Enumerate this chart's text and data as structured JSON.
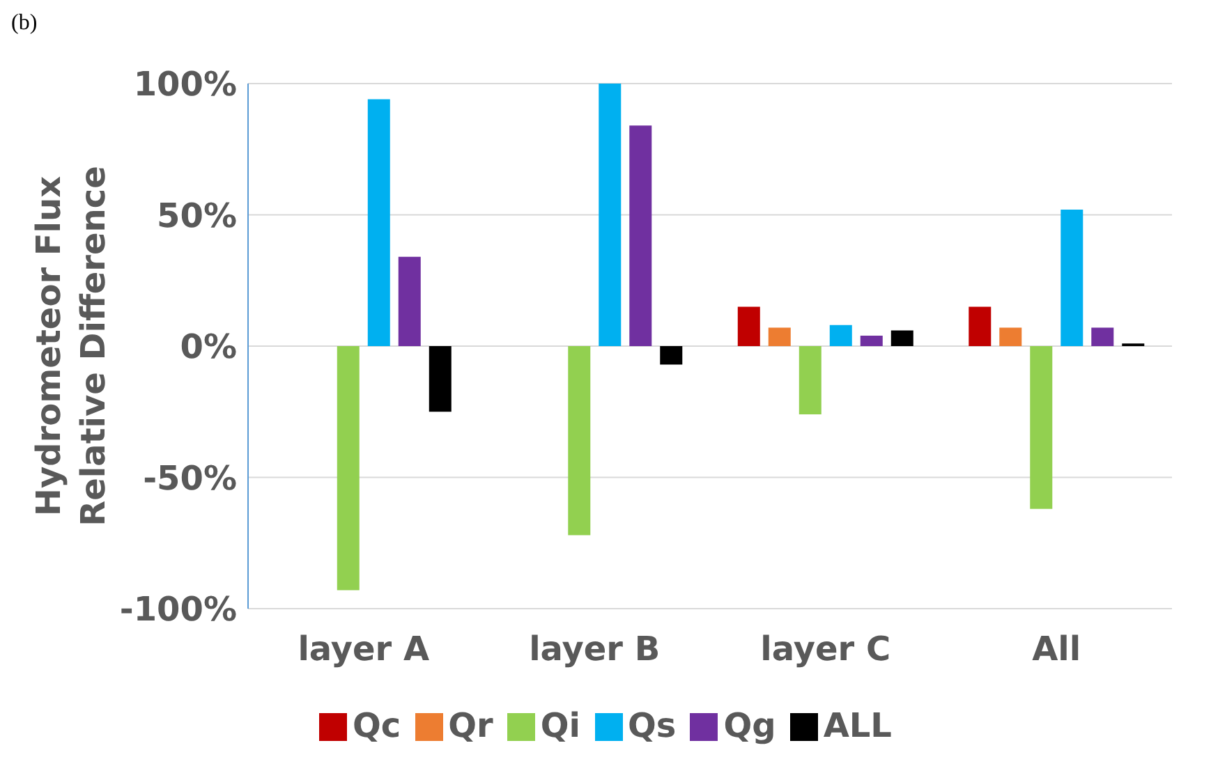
{
  "chart_data": {
    "type": "bar",
    "annotations": [
      "(b)"
    ],
    "ylabel": "Hydrometeor Flux\nRelative Difference",
    "categories": [
      "layer A",
      "layer B",
      "layer C",
      "All"
    ],
    "series": [
      {
        "name": "Qc",
        "color": "#c00000",
        "values": [
          0,
          0,
          15,
          15
        ]
      },
      {
        "name": "Qr",
        "color": "#ed7d31",
        "values": [
          0,
          0,
          7,
          7
        ]
      },
      {
        "name": "Qi",
        "color": "#92d050",
        "values": [
          -93,
          -72,
          -26,
          -62
        ]
      },
      {
        "name": "Qs",
        "color": "#00b0f0",
        "values": [
          94,
          100,
          8,
          52
        ]
      },
      {
        "name": "Qg",
        "color": "#7030a0",
        "values": [
          34,
          84,
          4,
          7
        ]
      },
      {
        "name": "ALL",
        "color": "#000000",
        "values": [
          -25,
          -7,
          6,
          1
        ]
      }
    ],
    "ylim": [
      -100,
      100
    ],
    "yticks": [
      {
        "value": -100,
        "label": "-100%"
      },
      {
        "value": -50,
        "label": "-50%"
      },
      {
        "value": 0,
        "label": "0%"
      },
      {
        "value": 50,
        "label": "50%"
      },
      {
        "value": 100,
        "label": "100%"
      }
    ],
    "grid": "y",
    "legend": "bottom"
  }
}
